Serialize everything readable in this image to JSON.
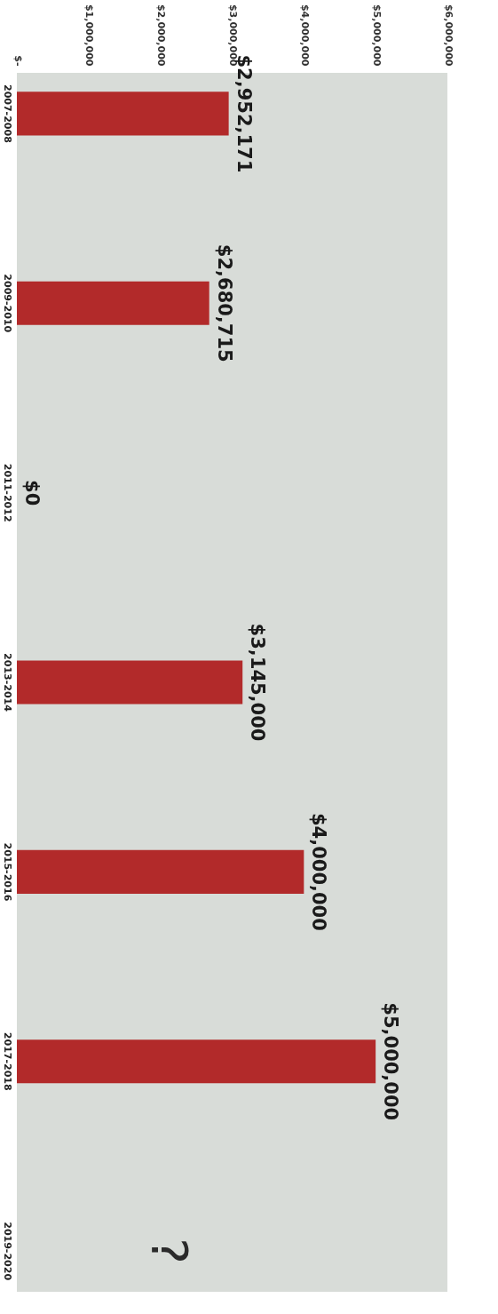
{
  "chart_data": {
    "type": "bar",
    "orientation": "horizontal",
    "categories": [
      "2007-2008",
      "2009-2010",
      "2011-2012",
      "2013-2014",
      "2015-2016",
      "2017-2018",
      "2019-2020"
    ],
    "values": [
      2952171,
      2680715,
      0,
      3145000,
      4000000,
      5000000,
      null
    ],
    "color": "#b22a2a",
    "value_labels": [
      "$2,952,171",
      "$2,680,715",
      "$0",
      "$3,145,000",
      "$4,000,000",
      "$5,000,000",
      null
    ],
    "annotations": [
      "?"
    ],
    "xlim": [
      0,
      6000000
    ],
    "xticks": [
      {
        "value": 0,
        "label": "$-"
      },
      {
        "value": 1000000,
        "label": "$1,000,000"
      },
      {
        "value": 2000000,
        "label": "$2,000,000"
      },
      {
        "value": 3000000,
        "label": "$3,000,000"
      },
      {
        "value": 4000000,
        "label": "$4,000,000"
      },
      {
        "value": 5000000,
        "label": "$5,000,000"
      },
      {
        "value": 6000000,
        "label": "$6,000,000"
      }
    ],
    "grid": false
  }
}
